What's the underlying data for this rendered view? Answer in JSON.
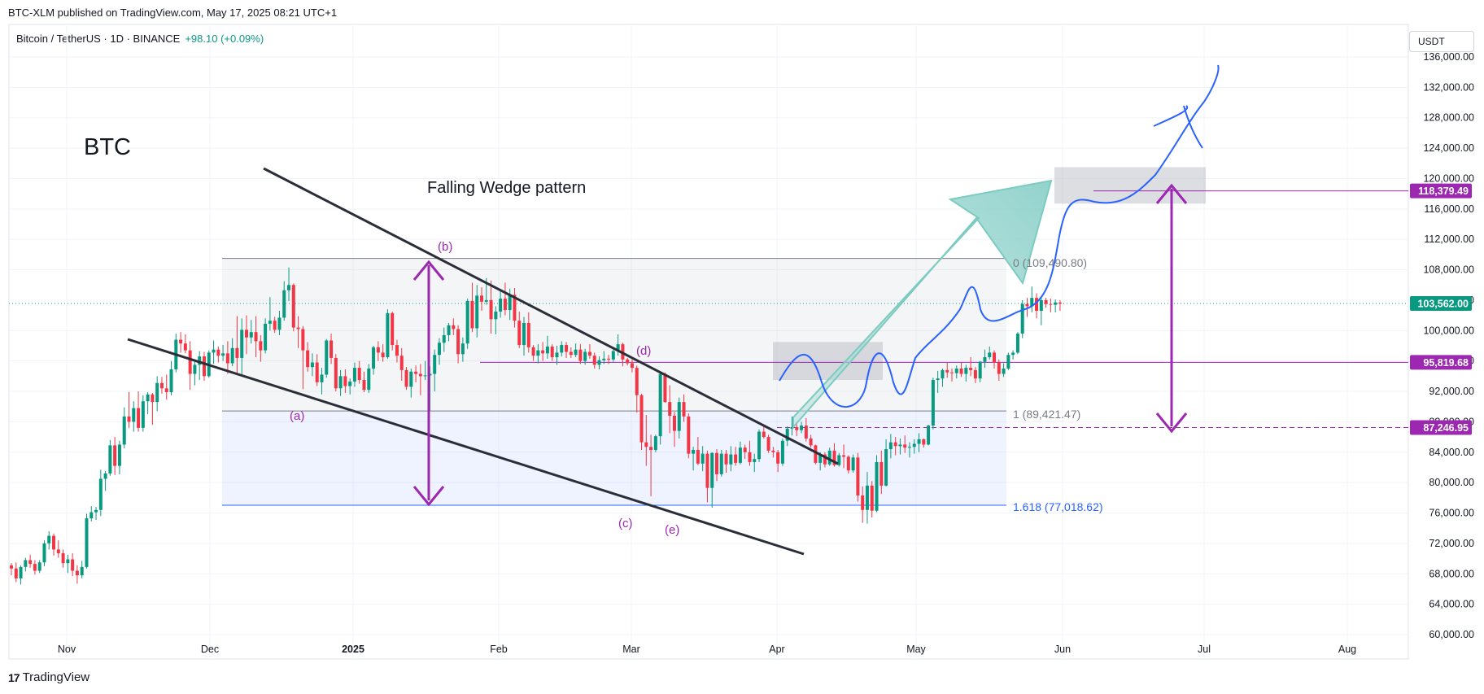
{
  "header": {
    "published": "BTC-XLM published on TradingView.com, May 17, 2025 08:21 UTC+1",
    "symbol": "Bitcoin / TetherUS · 1D · BINANCE",
    "change": "+98.10 (+0.09%)",
    "currency": "USDT"
  },
  "footer": {
    "brand": "TradingView",
    "logo_mark": "17"
  },
  "annotations": {
    "ticker": "BTC",
    "pattern": "Falling Wedge pattern",
    "wave_a": "(a)",
    "wave_b": "(b)",
    "wave_c": "(c)",
    "wave_d": "(d)",
    "wave_e": "(e)",
    "fib_0": "0 (109,490.80)",
    "fib_1": "1 (89,421.47)",
    "fib_1618": "1.618 (77,018.62)"
  },
  "chart_data": {
    "type": "candlestick",
    "title": "Bitcoin / TetherUS · 1D · BINANCE",
    "x_ticks": [
      "Nov",
      "Dec",
      "2025",
      "Feb",
      "Mar",
      "Apr",
      "May",
      "Jun",
      "Jul",
      "Aug"
    ],
    "y_ticks": [
      "60,000.00",
      "64,000.00",
      "68,000.00",
      "72,000.00",
      "76,000.00",
      "80,000.00",
      "84,000.00",
      "88,000.00",
      "92,000.00",
      "96,000.00",
      "100,000.00",
      "104,000.00",
      "108,000.00",
      "112,000.00",
      "116,000.00",
      "120,000.00",
      "124,000.00",
      "128,000.00",
      "132,000.00",
      "136,000.00"
    ],
    "ylim": [
      60000,
      137500
    ],
    "price_labels": [
      {
        "value": 118379.49,
        "text": "118,379.49",
        "color": "#9c27b0",
        "style": "solid"
      },
      {
        "value": 103562.0,
        "text": "103,562.00",
        "color": "#089981",
        "style": "dotted"
      },
      {
        "value": 95819.68,
        "text": "95,819.68",
        "color": "#9c27b0",
        "style": "solid"
      },
      {
        "value": 87246.95,
        "text": "87,246.95",
        "color": "#9c27b0",
        "style": "dashed"
      }
    ],
    "fib_levels": [
      {
        "ratio": "0",
        "value": 109490.8
      },
      {
        "ratio": "1",
        "value": 89421.47
      },
      {
        "ratio": "1.618",
        "value": 77018.62
      }
    ],
    "candles": [
      [
        69100,
        69400,
        67800,
        68700
      ],
      [
        68700,
        69500,
        66900,
        67400
      ],
      [
        67400,
        69100,
        66600,
        68900
      ],
      [
        68900,
        70100,
        68300,
        69800
      ],
      [
        69800,
        70500,
        68800,
        69300
      ],
      [
        69300,
        69800,
        67900,
        68400
      ],
      [
        68400,
        69800,
        68100,
        69500
      ],
      [
        69500,
        72400,
        69000,
        72000
      ],
      [
        72000,
        73600,
        71200,
        73000
      ],
      [
        73000,
        73300,
        70400,
        71200
      ],
      [
        71200,
        72400,
        70100,
        70700
      ],
      [
        70700,
        71200,
        68800,
        69400
      ],
      [
        69400,
        70500,
        68100,
        69900
      ],
      [
        69900,
        70700,
        67700,
        68400
      ],
      [
        68400,
        69100,
        66700,
        67800
      ],
      [
        67800,
        69700,
        67400,
        68900
      ],
      [
        68900,
        75900,
        68700,
        75300
      ],
      [
        75300,
        76900,
        74900,
        76100
      ],
      [
        76100,
        76800,
        75100,
        76400
      ],
      [
        76400,
        81700,
        75600,
        80500
      ],
      [
        80500,
        81500,
        78900,
        81200
      ],
      [
        81200,
        85600,
        80900,
        84900
      ],
      [
        84900,
        86000,
        81000,
        82200
      ],
      [
        82200,
        85500,
        81100,
        85000
      ],
      [
        85000,
        89900,
        84500,
        88700
      ],
      [
        88700,
        91900,
        87200,
        88000
      ],
      [
        88000,
        90700,
        86700,
        89800
      ],
      [
        89800,
        92000,
        86700,
        87200
      ],
      [
        87200,
        91500,
        86700,
        90700
      ],
      [
        90700,
        91900,
        89000,
        91600
      ],
      [
        91600,
        91800,
        87600,
        90600
      ],
      [
        90600,
        94000,
        89400,
        93100
      ],
      [
        93100,
        93900,
        91700,
        92400
      ],
      [
        92400,
        94200,
        90900,
        91900
      ],
      [
        91900,
        96000,
        91500,
        94900
      ],
      [
        94900,
        99600,
        94500,
        98800
      ],
      [
        98800,
        99800,
        97100,
        98300
      ],
      [
        98300,
        99500,
        97000,
        97400
      ],
      [
        97400,
        98600,
        92200,
        94300
      ],
      [
        94300,
        96000,
        92800,
        95500
      ],
      [
        95500,
        97300,
        93500,
        96600
      ],
      [
        96600,
        97200,
        93400,
        94000
      ],
      [
        94000,
        97400,
        93800,
        97100
      ],
      [
        97100,
        98700,
        95600,
        97500
      ],
      [
        97500,
        97900,
        95800,
        96700
      ],
      [
        96700,
        98100,
        96000,
        97000
      ],
      [
        97000,
        98600,
        94300,
        95700
      ],
      [
        95700,
        99000,
        95300,
        97700
      ],
      [
        97700,
        101900,
        94200,
        96400
      ],
      [
        96400,
        101600,
        94100,
        100100
      ],
      [
        100100,
        102000,
        96900,
        99100
      ],
      [
        99100,
        101400,
        98300,
        99800
      ],
      [
        99800,
        101900,
        96500,
        98600
      ],
      [
        98600,
        99400,
        95900,
        97400
      ],
      [
        97400,
        101600,
        97000,
        100900
      ],
      [
        100900,
        104400,
        100000,
        101300
      ],
      [
        101300,
        101800,
        99700,
        100100
      ],
      [
        100100,
        102600,
        99400,
        101700
      ],
      [
        101700,
        106500,
        101300,
        105300
      ],
      [
        105300,
        108300,
        103900,
        106000
      ],
      [
        106000,
        106200,
        99900,
        100400
      ],
      [
        100400,
        101900,
        97700,
        100200
      ],
      [
        100200,
        100600,
        92300,
        97400
      ],
      [
        97400,
        98500,
        94600,
        95200
      ],
      [
        95200,
        97000,
        94000,
        95800
      ],
      [
        95800,
        96900,
        92700,
        93200
      ],
      [
        93200,
        95100,
        91600,
        94200
      ],
      [
        94200,
        98900,
        93800,
        98700
      ],
      [
        98700,
        99600,
        95600,
        96400
      ],
      [
        96400,
        96900,
        92000,
        92400
      ],
      [
        92400,
        94800,
        91400,
        94000
      ],
      [
        94000,
        94900,
        91800,
        92700
      ],
      [
        92700,
        93700,
        91600,
        93300
      ],
      [
        93300,
        95800,
        92600,
        95100
      ],
      [
        95100,
        96000,
        93000,
        93500
      ],
      [
        93500,
        94600,
        91900,
        92200
      ],
      [
        92200,
        95600,
        91800,
        95000
      ],
      [
        95000,
        98000,
        94200,
        97800
      ],
      [
        97800,
        98600,
        96000,
        97100
      ],
      [
        97100,
        98200,
        95900,
        96500
      ],
      [
        96500,
        102800,
        96300,
        102300
      ],
      [
        102300,
        102500,
        97400,
        98100
      ],
      [
        98100,
        98800,
        95800,
        96700
      ],
      [
        96700,
        97700,
        93400,
        94800
      ],
      [
        94800,
        95200,
        92200,
        92600
      ],
      [
        92600,
        95000,
        91200,
        94600
      ],
      [
        94600,
        95400,
        93200,
        94300
      ],
      [
        94300,
        95600,
        91500,
        94000
      ],
      [
        94000,
        96000,
        93500,
        94100
      ],
      [
        94100,
        95300,
        89400,
        94300
      ],
      [
        94300,
        97500,
        92000,
        96800
      ],
      [
        96800,
        99000,
        95500,
        98400
      ],
      [
        98400,
        100400,
        97200,
        99400
      ],
      [
        99400,
        101000,
        98600,
        100700
      ],
      [
        100700,
        101600,
        99400,
        100200
      ],
      [
        100200,
        100700,
        95700,
        96900
      ],
      [
        96900,
        99100,
        95900,
        98300
      ],
      [
        98300,
        104200,
        97600,
        103900
      ],
      [
        103900,
        106300,
        99800,
        100300
      ],
      [
        100300,
        106000,
        99100,
        104600
      ],
      [
        104600,
        105700,
        102600,
        103800
      ],
      [
        103800,
        106900,
        103400,
        104000
      ],
      [
        104000,
        106600,
        99600,
        101500
      ],
      [
        101500,
        103200,
        99500,
        102500
      ],
      [
        102500,
        105300,
        101700,
        104200
      ],
      [
        104200,
        106300,
        102000,
        102700
      ],
      [
        102700,
        105500,
        101400,
        104700
      ],
      [
        104700,
        105600,
        100400,
        101300
      ],
      [
        101300,
        102500,
        97700,
        98100
      ],
      [
        98100,
        101800,
        96700,
        101000
      ],
      [
        101000,
        102400,
        97100,
        97800
      ],
      [
        97800,
        98100,
        96000,
        96700
      ],
      [
        96700,
        98200,
        95700,
        97400
      ],
      [
        97400,
        98500,
        96000,
        97000
      ],
      [
        97000,
        99300,
        96300,
        97900
      ],
      [
        97900,
        98200,
        96000,
        96500
      ],
      [
        96500,
        98000,
        95500,
        97100
      ],
      [
        97100,
        98600,
        96600,
        98100
      ],
      [
        98100,
        98500,
        96400,
        97200
      ],
      [
        97200,
        97800,
        96400,
        96800
      ],
      [
        96800,
        98300,
        96500,
        97500
      ],
      [
        97500,
        98200,
        95600,
        96000
      ],
      [
        96000,
        97600,
        95500,
        97200
      ],
      [
        97200,
        98200,
        96300,
        96700
      ],
      [
        96700,
        97100,
        95000,
        95500
      ],
      [
        95500,
        96600,
        94900,
        96100
      ],
      [
        96100,
        97300,
        95600,
        96300
      ],
      [
        96300,
        96800,
        95600,
        96200
      ],
      [
        96200,
        97500,
        95900,
        97300
      ],
      [
        97300,
        99500,
        96700,
        98200
      ],
      [
        98200,
        98400,
        95300,
        96200
      ],
      [
        96200,
        96400,
        95400,
        95700
      ],
      [
        95700,
        96200,
        94500,
        95100
      ],
      [
        95100,
        95400,
        89200,
        91500
      ],
      [
        91500,
        91700,
        84300,
        85300
      ],
      [
        85300,
        88900,
        82200,
        84700
      ],
      [
        84700,
        86300,
        78200,
        84300
      ],
      [
        84300,
        86300,
        84000,
        86100
      ],
      [
        86100,
        94400,
        85000,
        94300
      ],
      [
        94300,
        94500,
        90500,
        90600
      ],
      [
        90600,
        92800,
        86500,
        88800
      ],
      [
        88800,
        89300,
        84700,
        86800
      ],
      [
        86800,
        91200,
        85800,
        90600
      ],
      [
        90600,
        91600,
        88000,
        88700
      ],
      [
        88700,
        89100,
        83200,
        83800
      ],
      [
        83800,
        84700,
        81600,
        84300
      ],
      [
        84300,
        86000,
        82300,
        82500
      ],
      [
        82500,
        84800,
        81500,
        83800
      ],
      [
        83800,
        84200,
        77400,
        79300
      ],
      [
        79300,
        84000,
        76700,
        83900
      ],
      [
        83900,
        84400,
        80200,
        81100
      ],
      [
        81100,
        84300,
        80800,
        83800
      ],
      [
        83800,
        84300,
        81300,
        82400
      ],
      [
        82400,
        84800,
        81500,
        83700
      ],
      [
        83700,
        84700,
        82200,
        82600
      ],
      [
        82600,
        85400,
        82400,
        84600
      ],
      [
        84600,
        85000,
        83100,
        84000
      ],
      [
        84000,
        85500,
        82200,
        82700
      ],
      [
        82700,
        83800,
        81400,
        83100
      ],
      [
        83100,
        87000,
        82700,
        86700
      ],
      [
        86700,
        87400,
        85800,
        86000
      ],
      [
        86000,
        86300,
        83900,
        84200
      ],
      [
        84200,
        84700,
        83300,
        84000
      ],
      [
        84000,
        84300,
        81400,
        82500
      ],
      [
        82500,
        85800,
        82200,
        85500
      ],
      [
        85500,
        87400,
        84800,
        87100
      ],
      [
        87100,
        88700,
        86200,
        87300
      ],
      [
        87300,
        87700,
        86100,
        86900
      ],
      [
        86900,
        88000,
        86500,
        87500
      ],
      [
        87500,
        88500,
        85400,
        85800
      ],
      [
        85800,
        86300,
        84600,
        84900
      ],
      [
        84900,
        85000,
        82400,
        82600
      ],
      [
        82600,
        84000,
        81600,
        83700
      ],
      [
        83700,
        84000,
        82000,
        82400
      ],
      [
        82400,
        84600,
        82200,
        84200
      ],
      [
        84200,
        85200,
        82100,
        82300
      ],
      [
        82300,
        83900,
        82100,
        83600
      ],
      [
        83600,
        85000,
        81900,
        83400
      ],
      [
        83400,
        83600,
        81200,
        81600
      ],
      [
        81600,
        83700,
        81300,
        83300
      ],
      [
        83300,
        83900,
        77500,
        78300
      ],
      [
        78300,
        79500,
        74700,
        76400
      ],
      [
        76400,
        81400,
        74600,
        79600
      ],
      [
        79600,
        80200,
        75400,
        76300
      ],
      [
        76300,
        83600,
        76100,
        82700
      ],
      [
        82700,
        84200,
        78500,
        79600
      ],
      [
        79600,
        85700,
        79500,
        84400
      ],
      [
        84400,
        86400,
        83200,
        85300
      ],
      [
        85300,
        86000,
        83600,
        84800
      ],
      [
        84800,
        85800,
        83700,
        85000
      ],
      [
        85000,
        86200,
        83900,
        84600
      ],
      [
        84600,
        85300,
        83300,
        84700
      ],
      [
        84700,
        85700,
        83800,
        85100
      ],
      [
        85100,
        86500,
        84000,
        85700
      ],
      [
        85700,
        85800,
        84600,
        85000
      ],
      [
        85000,
        87600,
        84900,
        87500
      ],
      [
        87500,
        93800,
        87000,
        93500
      ],
      [
        93500,
        94700,
        91800,
        93700
      ],
      [
        93700,
        95000,
        92600,
        94800
      ],
      [
        94800,
        95800,
        93800,
        94500
      ],
      [
        94500,
        95000,
        93300,
        94400
      ],
      [
        94400,
        95400,
        93700,
        95000
      ],
      [
        95000,
        95800,
        93900,
        94300
      ],
      [
        94300,
        95500,
        93300,
        95100
      ],
      [
        95100,
        96500,
        94000,
        94800
      ],
      [
        94800,
        95200,
        93100,
        93700
      ],
      [
        93700,
        96000,
        93200,
        95900
      ],
      [
        95900,
        97500,
        95100,
        96500
      ],
      [
        96500,
        97900,
        96200,
        97100
      ],
      [
        97100,
        97400,
        95000,
        95800
      ],
      [
        95800,
        96200,
        93400,
        94300
      ],
      [
        94300,
        95700,
        93900,
        95000
      ],
      [
        95000,
        97100,
        94800,
        96800
      ],
      [
        96800,
        97400,
        96200,
        97100
      ],
      [
        97100,
        99800,
        96900,
        99600
      ],
      [
        99600,
        104000,
        99000,
        103500
      ],
      [
        103500,
        104300,
        101800,
        103200
      ],
      [
        103200,
        105800,
        102400,
        104300
      ],
      [
        104300,
        104900,
        101600,
        102600
      ],
      [
        102600,
        104500,
        100700,
        104000
      ],
      [
        104000,
        104300,
        103000,
        103500
      ],
      [
        103500,
        104200,
        102400,
        103400
      ],
      [
        103400,
        104100,
        102400,
        103700
      ],
      [
        103700,
        104000,
        102600,
        103562
      ]
    ]
  }
}
